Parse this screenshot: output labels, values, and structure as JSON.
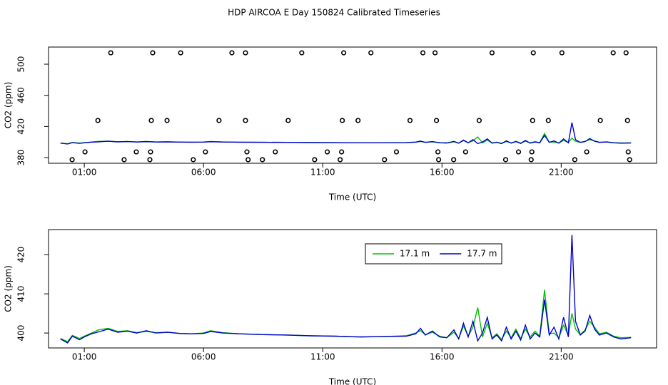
{
  "title": "HDP AIRCOA E  Day 150824  Calibrated Timeseries",
  "chart_data": [
    {
      "type": "line",
      "xlabel": "Time (UTC)",
      "ylabel": "CO2 (ppm)",
      "xlim": [
        -0.5,
        25
      ],
      "ylim": [
        372.7,
        522
      ],
      "xticks": [
        {
          "value": 1,
          "label": "01:00"
        },
        {
          "value": 6,
          "label": "06:00"
        },
        {
          "value": 11,
          "label": "11:00"
        },
        {
          "value": 16,
          "label": "16:00"
        },
        {
          "value": 21,
          "label": "21:00"
        }
      ],
      "yticks": [
        380,
        420,
        460,
        500
      ],
      "x": [
        0.0,
        0.3,
        0.5,
        0.8,
        1.0,
        1.3,
        1.6,
        2.0,
        2.4,
        2.8,
        3.2,
        3.6,
        4.0,
        4.5,
        5.0,
        5.5,
        6.0,
        6.3,
        6.8,
        7.5,
        8.5,
        9.5,
        10.5,
        11.5,
        12.5,
        13.5,
        14.5,
        14.9,
        15.1,
        15.3,
        15.6,
        15.9,
        16.2,
        16.5,
        16.7,
        16.9,
        17.1,
        17.3,
        17.5,
        17.7,
        17.9,
        18.1,
        18.3,
        18.5,
        18.7,
        18.9,
        19.1,
        19.3,
        19.5,
        19.7,
        19.9,
        20.1,
        20.3,
        20.5,
        20.7,
        20.9,
        21.1,
        21.3,
        21.45,
        21.6,
        21.8,
        22.0,
        22.2,
        22.4,
        22.6,
        22.9,
        23.2,
        23.5,
        23.93
      ],
      "series": [
        {
          "color": "#00c000",
          "values": [
            398.6,
            397.8,
            399.4,
            398.6,
            399.2,
            400.0,
            400.8,
            401.2,
            400.4,
            400.6,
            400.1,
            400.4,
            400.1,
            400.2,
            399.9,
            399.8,
            400.0,
            400.6,
            400.1,
            399.8,
            399.6,
            399.5,
            399.3,
            399.2,
            399.0,
            399.1,
            399.3,
            400.0,
            400.6,
            399.6,
            400.2,
            399.2,
            398.8,
            400.2,
            398.6,
            401.8,
            399.2,
            401.5,
            406.5,
            399.0,
            402.5,
            398.8,
            399.8,
            398.4,
            400.5,
            398.8,
            401.0,
            398.6,
            401.0,
            399.0,
            400.5,
            399.2,
            411.0,
            399.8,
            400.0,
            398.8,
            402.0,
            399.4,
            405.0,
            401.0,
            399.6,
            400.8,
            403.0,
            401.5,
            399.8,
            400.2,
            399.2,
            398.8,
            398.9
          ]
        },
        {
          "color": "#0000d0",
          "values": [
            398.5,
            397.5,
            399.2,
            398.3,
            399.0,
            399.8,
            400.3,
            401.0,
            400.2,
            400.5,
            400.0,
            400.6,
            400.0,
            400.2,
            399.9,
            399.8,
            399.9,
            400.4,
            400.0,
            399.8,
            399.6,
            399.5,
            399.3,
            399.2,
            399.0,
            399.1,
            399.2,
            399.8,
            401.2,
            399.5,
            400.5,
            399.0,
            398.8,
            400.8,
            398.5,
            402.5,
            399.0,
            403.0,
            398.0,
            400.0,
            404.0,
            398.5,
            399.5,
            398.0,
            401.5,
            398.5,
            400.5,
            398.2,
            402.0,
            398.5,
            400.0,
            399.0,
            408.5,
            399.5,
            401.5,
            398.5,
            404.0,
            399.0,
            425.0,
            403.0,
            399.5,
            400.5,
            404.5,
            401.0,
            399.5,
            400.0,
            399.0,
            398.5,
            398.8
          ]
        },
        {
          "mode": "points",
          "color": "#000000",
          "x": [
            2.11,
            3.87,
            5.04,
            7.19,
            7.76,
            10.12,
            11.88,
            13.02,
            15.2,
            15.71,
            18.1,
            19.83,
            21.03,
            23.18,
            23.72,
            1.57,
            3.81,
            4.47,
            6.65,
            7.76,
            9.55,
            11.82,
            12.48,
            14.66,
            15.77,
            17.56,
            19.8,
            20.46,
            22.64,
            23.78,
            1.03,
            3.18,
            3.78,
            6.08,
            7.82,
            9.01,
            11.19,
            11.79,
            14.09,
            15.83,
            16.99,
            19.21,
            19.77,
            22.07,
            23.81,
            0.49,
            2.67,
            3.75,
            5.57,
            7.87,
            8.47,
            10.66,
            11.73,
            13.59,
            15.86,
            16.49,
            18.67,
            19.74,
            21.57,
            23.87
          ],
          "values": [
            514.6,
            514.6,
            514.6,
            514.6,
            514.6,
            514.6,
            514.6,
            514.6,
            514.6,
            514.6,
            514.6,
            514.6,
            514.6,
            514.6,
            514.6,
            427.7,
            427.7,
            427.7,
            427.7,
            427.7,
            427.7,
            427.7,
            427.7,
            427.7,
            427.7,
            427.7,
            427.7,
            427.7,
            427.7,
            427.7,
            387.3,
            387.3,
            387.3,
            387.3,
            387.3,
            387.3,
            387.3,
            387.3,
            387.3,
            387.3,
            387.3,
            387.3,
            387.3,
            387.3,
            387.3,
            377.3,
            377.3,
            377.3,
            377.3,
            377.3,
            377.3,
            377.3,
            377.3,
            377.3,
            377.3,
            377.3,
            377.3,
            377.3,
            377.3,
            377.3
          ]
        }
      ]
    },
    {
      "type": "line",
      "xlabel": "Time (UTC)",
      "ylabel": "CO2 (ppm)",
      "legend": "top",
      "xlim": [
        -0.5,
        25
      ],
      "ylim": [
        396.2,
        426.4
      ],
      "xticks": [
        {
          "value": 1,
          "label": "01:00"
        },
        {
          "value": 6,
          "label": "06:00"
        },
        {
          "value": 11,
          "label": "11:00"
        },
        {
          "value": 16,
          "label": "16:00"
        },
        {
          "value": 21,
          "label": "21:00"
        }
      ],
      "yticks": [
        400,
        410,
        420
      ],
      "x": [
        0.0,
        0.3,
        0.5,
        0.8,
        1.0,
        1.3,
        1.6,
        2.0,
        2.4,
        2.8,
        3.2,
        3.6,
        4.0,
        4.5,
        5.0,
        5.5,
        6.0,
        6.3,
        6.8,
        7.5,
        8.5,
        9.5,
        10.5,
        11.5,
        12.5,
        13.5,
        14.5,
        14.9,
        15.1,
        15.3,
        15.6,
        15.9,
        16.2,
        16.5,
        16.7,
        16.9,
        17.1,
        17.3,
        17.5,
        17.7,
        17.9,
        18.1,
        18.3,
        18.5,
        18.7,
        18.9,
        19.1,
        19.3,
        19.5,
        19.7,
        19.9,
        20.1,
        20.3,
        20.5,
        20.7,
        20.9,
        21.1,
        21.3,
        21.45,
        21.6,
        21.8,
        22.0,
        22.2,
        22.4,
        22.6,
        22.9,
        23.2,
        23.5,
        23.93
      ],
      "series": [
        {
          "name": "17.1 m",
          "color": "#00c000",
          "values": [
            398.6,
            397.8,
            399.4,
            398.6,
            399.2,
            400.0,
            400.8,
            401.2,
            400.4,
            400.6,
            400.1,
            400.4,
            400.1,
            400.2,
            399.9,
            399.8,
            400.0,
            400.6,
            400.1,
            399.8,
            399.6,
            399.5,
            399.3,
            399.2,
            399.0,
            399.1,
            399.3,
            400.0,
            400.6,
            399.6,
            400.2,
            399.2,
            398.8,
            400.2,
            398.6,
            401.8,
            399.2,
            401.5,
            406.5,
            399.0,
            402.5,
            398.8,
            399.8,
            398.4,
            400.5,
            398.8,
            401.0,
            398.6,
            401.0,
            399.0,
            400.5,
            399.2,
            411.0,
            399.8,
            400.0,
            398.8,
            402.0,
            399.4,
            405.0,
            401.0,
            399.6,
            400.8,
            403.0,
            401.5,
            399.8,
            400.2,
            399.2,
            398.8,
            398.9
          ]
        },
        {
          "name": "17.7 m",
          "color": "#0000d0",
          "values": [
            398.5,
            397.5,
            399.2,
            398.3,
            399.0,
            399.8,
            400.3,
            401.0,
            400.2,
            400.5,
            400.0,
            400.6,
            400.0,
            400.2,
            399.9,
            399.8,
            399.9,
            400.4,
            400.0,
            399.8,
            399.6,
            399.5,
            399.3,
            399.2,
            399.0,
            399.1,
            399.2,
            399.8,
            401.2,
            399.5,
            400.5,
            399.0,
            398.8,
            400.8,
            398.5,
            402.5,
            399.0,
            403.0,
            398.0,
            400.0,
            404.0,
            398.5,
            399.5,
            398.0,
            401.5,
            398.5,
            400.5,
            398.2,
            402.0,
            398.5,
            400.0,
            399.0,
            408.5,
            399.5,
            401.5,
            398.5,
            404.0,
            399.0,
            425.0,
            403.0,
            399.5,
            400.5,
            404.5,
            401.0,
            399.5,
            400.0,
            399.0,
            398.5,
            398.8
          ]
        }
      ]
    }
  ]
}
